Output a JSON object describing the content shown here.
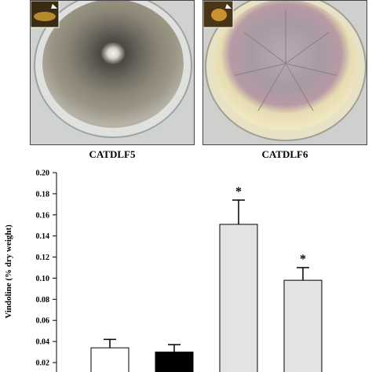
{
  "panels": [
    {
      "label": "CATDLF5"
    },
    {
      "label": "CATDLF6"
    }
  ],
  "colors": {
    "bar_white": "#ffffff",
    "bar_black": "#000000",
    "bar_gray": "#e3e3e3",
    "axis": "#000000"
  },
  "chart_data": {
    "type": "bar",
    "ylabel": "Vindoline (% dry weight)",
    "ylim": [
      0.02,
      0.2
    ],
    "yticks": [
      "0.02",
      "0.04",
      "0.06",
      "0.08",
      "0.10",
      "0.12",
      "0.14",
      "0.16",
      "0.18",
      "0.20"
    ],
    "values": [
      0.034,
      0.03,
      0.151,
      0.098
    ],
    "errors": [
      0.008,
      0.007,
      0.023,
      0.012
    ],
    "annotations": [
      "",
      "",
      "*",
      "*"
    ],
    "grid": false
  }
}
